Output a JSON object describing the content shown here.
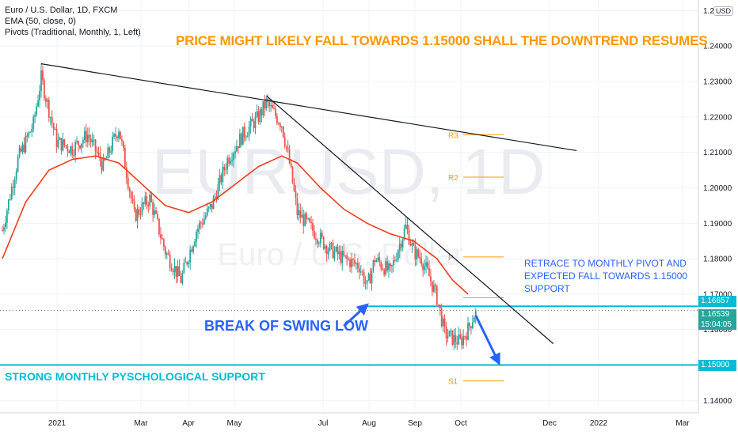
{
  "legend": {
    "line1": "Euro / U.S. Dollar, 1D, FXCM",
    "line2": "EMA (50, close, 0)",
    "line3": "Pivots (Traditional, Monthly, 1, Left)"
  },
  "currency_pill": "USD",
  "watermark": {
    "symbol": "EURUSD, 1D",
    "name": "Euro / U.S. Dollar"
  },
  "annotations": {
    "headline": "PRICE MIGHT LIKELY FALL TOWARDS 1.15000 SHALL THE DOWNTREND RESUMES",
    "retrace_line1": "RETRACE TO MONTHLY PIVOT AND",
    "retrace_line2": "EXPECTED FALL TOWARDS 1.15000",
    "retrace_line3": "SUPPORT",
    "break": "BREAK OF SWING LOW",
    "support": "STRONG MONTHLY PYSCHOLOGICAL SUPPORT"
  },
  "price_tags": {
    "swing_low": "1.16657",
    "last": "1.16539",
    "countdown": "15:04:05",
    "support": "1.15000"
  },
  "colors": {
    "up": "#26a69a",
    "down": "#ef5350",
    "ema": "#f23d1d",
    "trendline": "#131722",
    "pivot": "#ff9800",
    "horizontal": "#00bcd4",
    "arrow": "#2962ff",
    "axis_text": "#131722",
    "grid": "#f0f3fa"
  },
  "chart_data": {
    "type": "candlestick",
    "symbol": "EURUSD",
    "timeframe": "1D",
    "x_ticks": [
      "2021",
      "Mar",
      "Apr",
      "May",
      "Jul",
      "Aug",
      "Sep",
      "Oct",
      "Dec",
      "2022",
      "Mar"
    ],
    "y_ticks": [
      "1.14000",
      "1.15000",
      "1.16000",
      "1.17000",
      "1.18000",
      "1.19000",
      "1.20000",
      "1.21000",
      "1.22000",
      "1.23000",
      "1.24000",
      "1.25000"
    ],
    "ylim": [
      1.1365,
      1.253
    ],
    "close_path_weeks": [
      {
        "w": 0,
        "p": 1.188
      },
      {
        "w": 2,
        "p": 1.208
      },
      {
        "w": 4,
        "p": 1.218
      },
      {
        "w": 5,
        "p": 1.231
      },
      {
        "w": 7,
        "p": 1.213
      },
      {
        "w": 9,
        "p": 1.211
      },
      {
        "w": 11,
        "p": 1.215
      },
      {
        "w": 13,
        "p": 1.206
      },
      {
        "w": 15,
        "p": 1.217
      },
      {
        "w": 17,
        "p": 1.192
      },
      {
        "w": 19,
        "p": 1.197
      },
      {
        "w": 21,
        "p": 1.182
      },
      {
        "w": 23,
        "p": 1.174
      },
      {
        "w": 25,
        "p": 1.188
      },
      {
        "w": 27,
        "p": 1.195
      },
      {
        "w": 29,
        "p": 1.208
      },
      {
        "w": 31,
        "p": 1.215
      },
      {
        "w": 33,
        "p": 1.22
      },
      {
        "w": 34,
        "p": 1.224
      },
      {
        "w": 36,
        "p": 1.218
      },
      {
        "w": 37,
        "p": 1.207
      },
      {
        "w": 38,
        "p": 1.193
      },
      {
        "w": 40,
        "p": 1.188
      },
      {
        "w": 42,
        "p": 1.183
      },
      {
        "w": 44,
        "p": 1.18
      },
      {
        "w": 46,
        "p": 1.178
      },
      {
        "w": 47,
        "p": 1.172
      },
      {
        "w": 48,
        "p": 1.18
      },
      {
        "w": 50,
        "p": 1.176
      },
      {
        "w": 51,
        "p": 1.183
      },
      {
        "w": 52,
        "p": 1.189
      },
      {
        "w": 53,
        "p": 1.182
      },
      {
        "w": 54,
        "p": 1.18
      },
      {
        "w": 55,
        "p": 1.175
      },
      {
        "w": 56,
        "p": 1.169
      },
      {
        "w": 57,
        "p": 1.159
      },
      {
        "w": 58,
        "p": 1.1575
      },
      {
        "w": 59,
        "p": 1.1565
      },
      {
        "w": 60,
        "p": 1.16
      },
      {
        "w": 61,
        "p": 1.1654
      }
    ],
    "ema50": [
      {
        "w": 0,
        "p": 1.18
      },
      {
        "w": 3,
        "p": 1.196
      },
      {
        "w": 6,
        "p": 1.205
      },
      {
        "w": 9,
        "p": 1.208
      },
      {
        "w": 12,
        "p": 1.209
      },
      {
        "w": 15,
        "p": 1.207
      },
      {
        "w": 18,
        "p": 1.201
      },
      {
        "w": 21,
        "p": 1.195
      },
      {
        "w": 24,
        "p": 1.193
      },
      {
        "w": 27,
        "p": 1.196
      },
      {
        "w": 30,
        "p": 1.201
      },
      {
        "w": 33,
        "p": 1.206
      },
      {
        "w": 36,
        "p": 1.209
      },
      {
        "w": 38,
        "p": 1.207
      },
      {
        "w": 41,
        "p": 1.2
      },
      {
        "w": 44,
        "p": 1.194
      },
      {
        "w": 47,
        "p": 1.19
      },
      {
        "w": 50,
        "p": 1.187
      },
      {
        "w": 53,
        "p": 1.185
      },
      {
        "w": 56,
        "p": 1.18
      },
      {
        "w": 58,
        "p": 1.174
      },
      {
        "w": 60,
        "p": 1.17
      }
    ],
    "trendlines": [
      {
        "name": "major",
        "from": {
          "w": 5,
          "p": 1.235
        },
        "to": {
          "w": 74,
          "p": 1.2105
        }
      },
      {
        "name": "minor",
        "from": {
          "w": 34,
          "p": 1.226
        },
        "to": {
          "w": 71,
          "p": 1.156
        }
      }
    ],
    "pivots": [
      {
        "label": "R3",
        "p": 1.215
      },
      {
        "label": "R2",
        "p": 1.203
      },
      {
        "label": "P",
        "p": 1.1805
      },
      {
        "label": "",
        "p": 1.169
      },
      {
        "label": "S1",
        "p": 1.1455
      }
    ],
    "levels": [
      {
        "name": "swing_low",
        "p": 1.16657
      },
      {
        "name": "support",
        "p": 1.15
      },
      {
        "name": "last",
        "p": 1.16539
      }
    ],
    "arrows": [
      {
        "name": "break_arrow",
        "from": {
          "w": 44,
          "p": 1.161
        },
        "to": {
          "w": 47,
          "p": 1.167
        }
      },
      {
        "name": "forecast_arrow",
        "from": {
          "w": 61,
          "p": 1.164
        },
        "to": {
          "w": 64,
          "p": 1.1505
        }
      }
    ]
  }
}
